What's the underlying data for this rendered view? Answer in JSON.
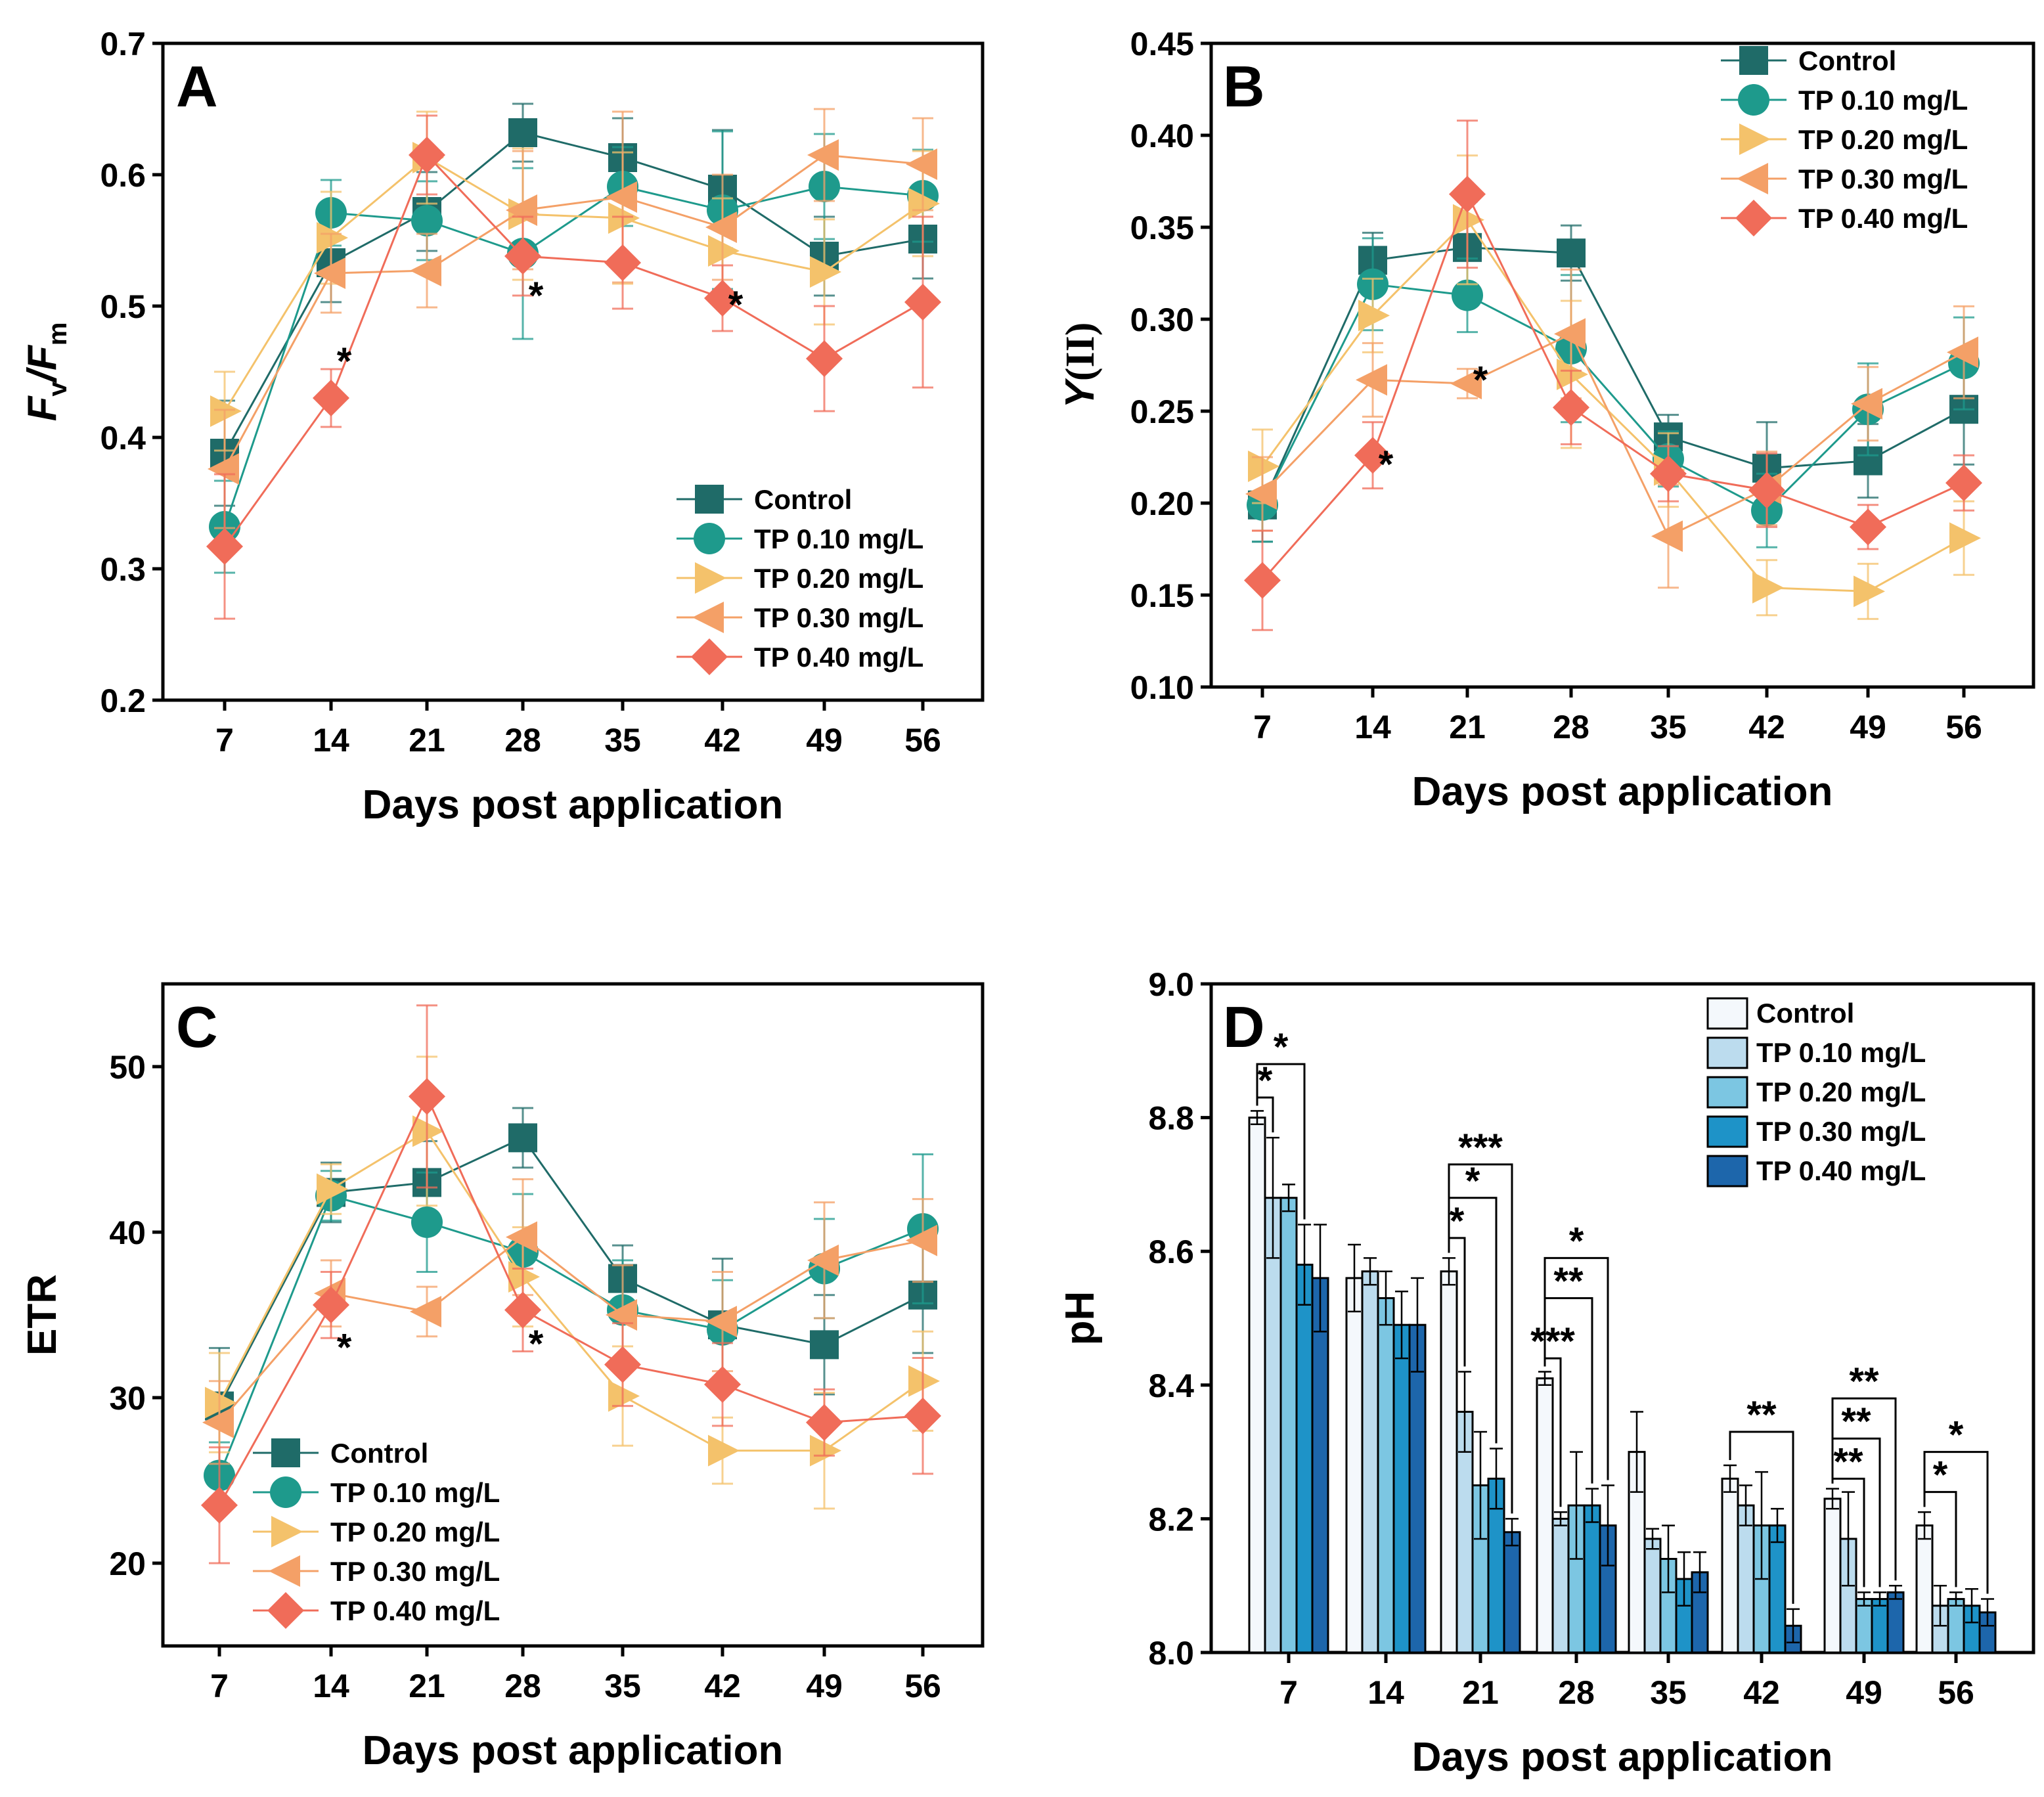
{
  "colors": {
    "Control": "#1f6b68",
    "TP 0.10 mg/L": "#1e9a8c",
    "TP 0.20 mg/L": "#f4c26b",
    "TP 0.30 mg/L": "#f4a067",
    "TP 0.40 mg/L": "#f06c59"
  },
  "bar_colors": [
    "#f4f8fc",
    "#bcdcee",
    "#7cc6e2",
    "#1e93c8",
    "#1d66ab"
  ],
  "chart_data": [
    {
      "panel": "A",
      "type": "line",
      "categories": [
        "7",
        "14",
        "21",
        "28",
        "35",
        "42",
        "49",
        "56"
      ],
      "ylim": [
        0.2,
        0.7
      ],
      "yticks": [
        "0.2",
        "0.3",
        "0.4",
        "0.5",
        "0.6",
        "0.7"
      ],
      "ylabel": "Fv/Fm",
      "ylabel_parts": [
        "F",
        "v",
        "/F",
        "m"
      ],
      "xlabel": "Days post application",
      "legend_position": "bottom-right",
      "series": [
        {
          "name": "Control",
          "marker": "square",
          "values": [
            0.388,
            0.533,
            0.572,
            0.632,
            0.613,
            0.589,
            0.538,
            0.551
          ],
          "errors": [
            0.04,
            0.03,
            0.03,
            0.022,
            0.03,
            0.045,
            0.03,
            0.03
          ]
        },
        {
          "name": "TP 0.10 mg/L",
          "marker": "circle",
          "values": [
            0.332,
            0.571,
            0.565,
            0.54,
            0.591,
            0.573,
            0.591,
            0.584
          ],
          "errors": [
            0.035,
            0.025,
            0.03,
            0.065,
            0.03,
            0.06,
            0.04,
            0.035
          ]
        },
        {
          "name": "TP 0.20 mg/L",
          "marker": "tri-right",
          "values": [
            0.42,
            0.552,
            0.613,
            0.57,
            0.567,
            0.542,
            0.526,
            0.578
          ],
          "errors": [
            0.03,
            0.035,
            0.035,
            0.05,
            0.05,
            0.04,
            0.04,
            0.04
          ]
        },
        {
          "name": "TP 0.30 mg/L",
          "marker": "tri-left",
          "values": [
            0.376,
            0.525,
            0.527,
            0.573,
            0.583,
            0.56,
            0.615,
            0.608
          ],
          "errors": [
            0.045,
            0.03,
            0.028,
            0.045,
            0.065,
            0.04,
            0.035,
            0.035
          ]
        },
        {
          "name": "TP 0.40 mg/L",
          "marker": "diamond",
          "values": [
            0.317,
            0.43,
            0.615,
            0.538,
            0.533,
            0.506,
            0.46,
            0.503
          ],
          "errors": [
            0.055,
            0.022,
            0.03,
            0.03,
            0.035,
            0.025,
            0.04,
            0.065
          ]
        }
      ],
      "annotations": [
        {
          "text": "*",
          "x": "14",
          "y": 0.465
        },
        {
          "text": "*",
          "x": "28",
          "y": 0.515
        },
        {
          "text": "*",
          "x": "42",
          "y": 0.508
        }
      ]
    },
    {
      "panel": "B",
      "type": "line",
      "categories": [
        "7",
        "14",
        "21",
        "28",
        "35",
        "42",
        "49",
        "56"
      ],
      "ylim": [
        0.1,
        0.45
      ],
      "yticks": [
        "0.10",
        "0.15",
        "0.20",
        "0.25",
        "0.30",
        "0.35",
        "0.40",
        "0.45"
      ],
      "ylabel": "Y(II)",
      "ylabel_parts": [
        "Y",
        "(II)"
      ],
      "xlabel": "Days post application",
      "legend_position": "top-right",
      "series": [
        {
          "name": "Control",
          "marker": "square",
          "values": [
            0.199,
            0.332,
            0.339,
            0.336,
            0.236,
            0.219,
            0.223,
            0.251
          ],
          "errors": [
            0.02,
            0.015,
            0.025,
            0.015,
            0.012,
            0.025,
            0.02,
            0.03
          ]
        },
        {
          "name": "TP 0.10 mg/L",
          "marker": "circle",
          "values": [
            0.199,
            0.319,
            0.313,
            0.284,
            0.224,
            0.196,
            0.251,
            0.276
          ],
          "errors": [
            0.02,
            0.025,
            0.02,
            0.04,
            0.015,
            0.02,
            0.025,
            0.025
          ]
        },
        {
          "name": "TP 0.20 mg/L",
          "marker": "tri-right",
          "values": [
            0.22,
            0.302,
            0.354,
            0.27,
            0.218,
            0.154,
            0.152,
            0.181
          ],
          "errors": [
            0.02,
            0.02,
            0.035,
            0.04,
            0.02,
            0.015,
            0.015,
            0.02
          ]
        },
        {
          "name": "TP 0.30 mg/L",
          "marker": "tri-left",
          "values": [
            0.205,
            0.267,
            0.265,
            0.292,
            0.182,
            0.208,
            0.254,
            0.282
          ],
          "errors": [
            0.02,
            0.02,
            0.008,
            0.035,
            0.028,
            0.02,
            0.02,
            0.025
          ]
        },
        {
          "name": "TP 0.40 mg/L",
          "marker": "diamond",
          "values": [
            0.158,
            0.226,
            0.368,
            0.252,
            0.216,
            0.207,
            0.187,
            0.211
          ],
          "errors": [
            0.027,
            0.018,
            0.04,
            0.02,
            0.015,
            0.02,
            0.012,
            0.015
          ]
        }
      ],
      "annotations": [
        {
          "text": "*",
          "x": "14",
          "y": 0.226
        },
        {
          "text": "*",
          "x": "21",
          "y": 0.272
        }
      ]
    },
    {
      "panel": "C",
      "type": "line",
      "categories": [
        "7",
        "14",
        "21",
        "28",
        "35",
        "42",
        "49",
        "56"
      ],
      "ylim": [
        15,
        55
      ],
      "yticks": [
        "20",
        "30",
        "40",
        "50"
      ],
      "ytick_values": [
        20,
        30,
        40,
        50
      ],
      "ylabel": "ETR",
      "ylabel_parts": [
        "ETR"
      ],
      "xlabel": "Days post application",
      "legend_position": "bottom-left",
      "series": [
        {
          "name": "Control",
          "marker": "square",
          "values": [
            29.5,
            42.4,
            43.0,
            45.7,
            37.2,
            34.4,
            33.2,
            36.2
          ],
          "errors": [
            3.5,
            1.8,
            2.5,
            1.8,
            2.0,
            4.0,
            3.0,
            3.5
          ]
        },
        {
          "name": "TP 0.10 mg/L",
          "marker": "circle",
          "values": [
            25.3,
            42.2,
            40.6,
            38.8,
            35.3,
            34.1,
            37.8,
            40.2
          ],
          "errors": [
            2.0,
            1.5,
            3.0,
            3.5,
            3.0,
            3.0,
            3.0,
            4.5
          ]
        },
        {
          "name": "TP 0.20 mg/L",
          "marker": "tri-right",
          "values": [
            29.7,
            42.6,
            46.1,
            37.3,
            30.1,
            26.8,
            26.8,
            31.0
          ],
          "errors": [
            3.0,
            1.5,
            4.5,
            3.0,
            3.0,
            2.0,
            3.5,
            3.0
          ]
        },
        {
          "name": "TP 0.30 mg/L",
          "marker": "tri-left",
          "values": [
            28.5,
            36.3,
            35.2,
            39.7,
            35.0,
            34.6,
            38.3,
            39.5
          ],
          "errors": [
            2.5,
            2.0,
            1.5,
            3.5,
            3.0,
            3.0,
            3.5,
            2.5
          ]
        },
        {
          "name": "TP 0.40 mg/L",
          "marker": "diamond",
          "values": [
            23.5,
            35.6,
            48.2,
            35.3,
            32.0,
            30.8,
            28.5,
            28.9
          ],
          "errors": [
            3.5,
            2.0,
            5.5,
            2.5,
            2.5,
            2.5,
            2.0,
            3.5
          ]
        }
      ],
      "annotations": [
        {
          "text": "*",
          "x": "14",
          "y": 33.6
        },
        {
          "text": "*",
          "x": "28",
          "y": 33.8
        }
      ]
    },
    {
      "panel": "D",
      "type": "bar",
      "categories": [
        "7",
        "14",
        "21",
        "28",
        "35",
        "42",
        "49",
        "56"
      ],
      "ylim": [
        8.0,
        9.0
      ],
      "yticks": [
        "8.0",
        "8.2",
        "8.4",
        "8.6",
        "8.8",
        "9.0"
      ],
      "ylabel": "pH",
      "ylabel_parts": [
        "pH"
      ],
      "xlabel": "Days post application",
      "legend_position": "top-right",
      "series": [
        {
          "name": "Control",
          "values": [
            8.8,
            8.56,
            8.57,
            8.41,
            8.3,
            8.26,
            8.23,
            8.19
          ],
          "errors": [
            0.01,
            0.05,
            0.02,
            0.01,
            0.06,
            0.02,
            0.015,
            0.02
          ]
        },
        {
          "name": "TP 0.10 mg/L",
          "values": [
            8.68,
            8.57,
            8.36,
            8.2,
            8.17,
            8.22,
            8.17,
            8.07
          ],
          "errors": [
            0.09,
            0.02,
            0.06,
            0.01,
            0.015,
            0.03,
            0.07,
            0.03
          ]
        },
        {
          "name": "TP 0.20 mg/L",
          "values": [
            8.68,
            8.53,
            8.25,
            8.22,
            8.14,
            8.19,
            8.08,
            8.08
          ],
          "errors": [
            0.02,
            0.04,
            0.08,
            0.08,
            0.05,
            0.08,
            0.01,
            0.01
          ]
        },
        {
          "name": "TP 0.30 mg/L",
          "values": [
            8.58,
            8.49,
            8.26,
            8.22,
            8.11,
            8.19,
            8.08,
            8.07
          ],
          "errors": [
            0.06,
            0.05,
            0.045,
            0.025,
            0.04,
            0.025,
            0.01,
            0.025
          ]
        },
        {
          "name": "TP 0.40 mg/L",
          "values": [
            8.56,
            8.49,
            8.18,
            8.19,
            8.12,
            8.04,
            8.09,
            8.06
          ],
          "errors": [
            0.08,
            0.07,
            0.02,
            0.06,
            0.03,
            0.025,
            0.01,
            0.02
          ]
        }
      ],
      "significance": [
        {
          "day": "7",
          "from": 0,
          "to": 1,
          "text": "*",
          "y": 8.83
        },
        {
          "day": "7",
          "from": 0,
          "to": 3,
          "text": "*",
          "y": 8.88
        },
        {
          "day": "21",
          "from": 0,
          "to": 1,
          "text": "*",
          "y": 8.62
        },
        {
          "day": "21",
          "from": 0,
          "to": 3,
          "text": "*",
          "y": 8.68
        },
        {
          "day": "21",
          "from": 0,
          "to": 4,
          "text": "***",
          "y": 8.73
        },
        {
          "day": "28",
          "from": 0,
          "to": 1,
          "text": "***",
          "y": 8.44
        },
        {
          "day": "28",
          "from": 0,
          "to": 3,
          "text": "**",
          "y": 8.53
        },
        {
          "day": "28",
          "from": 0,
          "to": 4,
          "text": "*",
          "y": 8.59
        },
        {
          "day": "42",
          "from": 0,
          "to": 4,
          "text": "**",
          "y": 8.33
        },
        {
          "day": "49",
          "from": 0,
          "to": 2,
          "text": "**",
          "y": 8.26
        },
        {
          "day": "49",
          "from": 0,
          "to": 3,
          "text": "**",
          "y": 8.32
        },
        {
          "day": "49",
          "from": 0,
          "to": 4,
          "text": "**",
          "y": 8.38
        },
        {
          "day": "56",
          "from": 0,
          "to": 2,
          "text": "*",
          "y": 8.24
        },
        {
          "day": "56",
          "from": 0,
          "to": 4,
          "text": "*",
          "y": 8.3
        }
      ]
    }
  ]
}
